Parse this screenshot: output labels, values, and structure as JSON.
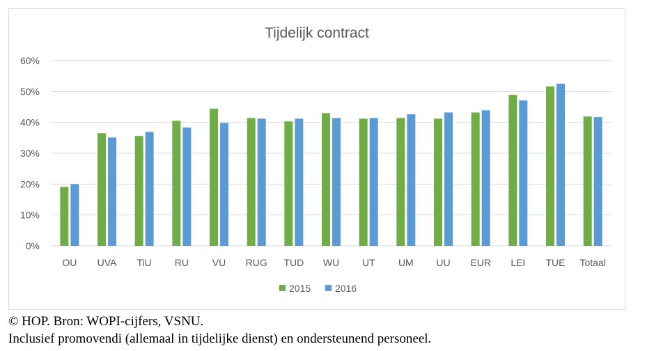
{
  "chart_data": {
    "type": "bar",
    "title": "Tijdelijk contract",
    "categories": [
      "OU",
      "UVA",
      "TiU",
      "RU",
      "VU",
      "RUG",
      "TUD",
      "WU",
      "UT",
      "UM",
      "UU",
      "EUR",
      "LEI",
      "TUE",
      "Totaal"
    ],
    "series": [
      {
        "name": "2015",
        "color": "#70ad47",
        "values": [
          19.1,
          36.5,
          35.6,
          40.5,
          44.4,
          41.4,
          40.3,
          43.0,
          41.2,
          41.4,
          41.2,
          43.2,
          48.9,
          51.6,
          41.9
        ]
      },
      {
        "name": "2016",
        "color": "#5b9bd5",
        "values": [
          20.0,
          35.1,
          36.9,
          38.3,
          39.8,
          41.2,
          41.2,
          41.4,
          41.4,
          42.6,
          43.2,
          43.9,
          47.1,
          52.5,
          41.7
        ]
      }
    ],
    "yticks": [
      "0%",
      "10%",
      "20%",
      "30%",
      "40%",
      "50%",
      "60%"
    ],
    "ylim": [
      0,
      60
    ],
    "xlabel": "",
    "ylabel": "",
    "grid": true,
    "legend": "bottom"
  },
  "caption": {
    "line1": "© HOP. Bron: WOPI-cijfers, VSNU.",
    "line2": "Inclusief promovendi (allemaal in tijdelijke dienst) en ondersteunend personeel."
  }
}
